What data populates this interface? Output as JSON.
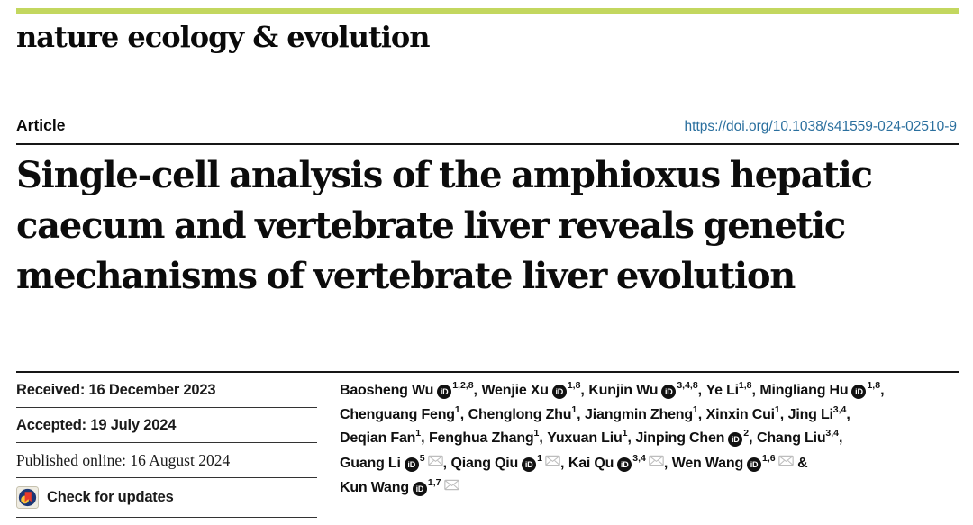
{
  "colors": {
    "accent_green": "#c3d75f",
    "link_blue": "#2a6f9e",
    "rule_dark": "#161616",
    "text_black": "#0d0d0d",
    "envelope_gray": "#bdbdbd",
    "orcid_black": "#111111",
    "crossmark_navy": "#1c3775",
    "crossmark_red": "#e8392b",
    "crossmark_yellow": "#f5c33b"
  },
  "masthead": {
    "journal": "nature ecology & evolution"
  },
  "header": {
    "article_label": "Article",
    "doi_url": "https://doi.org/10.1038/s41559-024-02510-9"
  },
  "title_lines": [
    "Single-cell analysis of the amphioxus hepatic",
    "caecum and vertebrate liver reveals genetic",
    "mechanisms of vertebrate liver evolution"
  ],
  "dates": {
    "received": "Received: 16 December 2023",
    "accepted": "Accepted: 19 July 2024",
    "published": "Published online: 16 August 2024"
  },
  "check_updates": {
    "label": "Check for updates"
  },
  "icons": {
    "orcid": "iD",
    "envelope": "envelope-outline",
    "crossmark": "crossmark-circle-badge"
  },
  "authors": {
    "lines": [
      [
        {
          "name": "Baosheng Wu",
          "orcid": true,
          "sup": "1,2,8",
          "mail": false,
          "sep": ", "
        },
        {
          "name": "Wenjie Xu",
          "orcid": true,
          "sup": "1,8",
          "mail": false,
          "sep": ", "
        },
        {
          "name": "Kunjin Wu",
          "orcid": true,
          "sup": "3,4,8",
          "mail": false,
          "sep": ", "
        },
        {
          "name": "Ye Li",
          "orcid": false,
          "sup": "1,8",
          "mail": false,
          "sep": ", "
        },
        {
          "name": "Mingliang Hu",
          "orcid": true,
          "sup": "1,8",
          "mail": false,
          "sep": ","
        }
      ],
      [
        {
          "name": "Chenguang Feng",
          "orcid": false,
          "sup": "1",
          "mail": false,
          "sep": ", "
        },
        {
          "name": "Chenglong Zhu",
          "orcid": false,
          "sup": "1",
          "mail": false,
          "sep": ", "
        },
        {
          "name": "Jiangmin Zheng",
          "orcid": false,
          "sup": "1",
          "mail": false,
          "sep": ", "
        },
        {
          "name": "Xinxin Cui",
          "orcid": false,
          "sup": "1",
          "mail": false,
          "sep": ", "
        },
        {
          "name": "Jing Li",
          "orcid": false,
          "sup": "3,4",
          "mail": false,
          "sep": ","
        }
      ],
      [
        {
          "name": "Deqian Fan",
          "orcid": false,
          "sup": "1",
          "mail": false,
          "sep": ", "
        },
        {
          "name": "Fenghua Zhang",
          "orcid": false,
          "sup": "1",
          "mail": false,
          "sep": ", "
        },
        {
          "name": "Yuxuan Liu",
          "orcid": false,
          "sup": "1",
          "mail": false,
          "sep": ", "
        },
        {
          "name": "Jinping Chen",
          "orcid": true,
          "sup": "2",
          "mail": false,
          "sep": ", "
        },
        {
          "name": "Chang Liu",
          "orcid": false,
          "sup": "3,4",
          "mail": false,
          "sep": ","
        }
      ],
      [
        {
          "name": "Guang Li",
          "orcid": true,
          "sup": "5",
          "mail": true,
          "sep": ", "
        },
        {
          "name": "Qiang Qiu",
          "orcid": true,
          "sup": "1",
          "mail": true,
          "sep": ", "
        },
        {
          "name": "Kai Qu",
          "orcid": true,
          "sup": "3,4",
          "mail": true,
          "sep": ", "
        },
        {
          "name": "Wen Wang",
          "orcid": true,
          "sup": "1,6",
          "mail": true,
          "sep": " &"
        }
      ],
      [
        {
          "name": "Kun Wang",
          "orcid": true,
          "sup": "1,7",
          "mail": true,
          "sep": ""
        }
      ]
    ]
  }
}
